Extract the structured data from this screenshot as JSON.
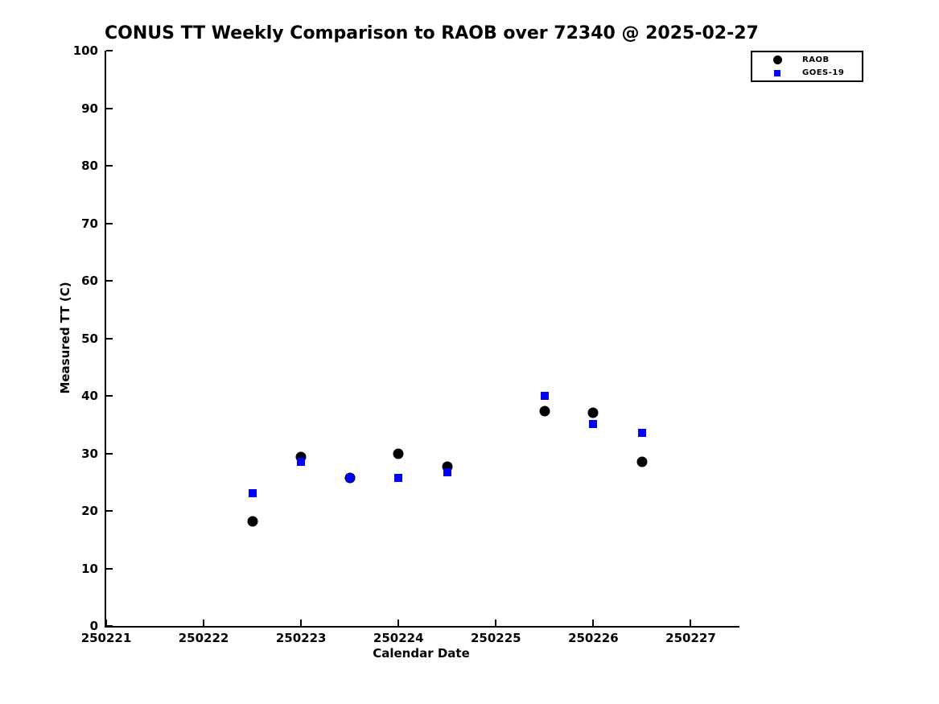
{
  "chart_data": {
    "type": "scatter",
    "title": "CONUS TT Weekly Comparison to RAOB over 72340 @ 2025-02-27",
    "xlabel": "Calendar Date",
    "ylabel": "Measured TT (C)",
    "xlim": [
      250221,
      250227.5
    ],
    "ylim": [
      0,
      100
    ],
    "xticks": [
      250221,
      250222,
      250223,
      250224,
      250225,
      250226,
      250227
    ],
    "yticks": [
      0,
      10,
      20,
      30,
      40,
      50,
      60,
      70,
      80,
      90,
      100
    ],
    "grid": false,
    "legend_position": "top-right-outside",
    "background_color": "#ffffff",
    "series": [
      {
        "name": "RAOB",
        "marker": "circle",
        "color": "#000000",
        "points": [
          {
            "x": 250222.5,
            "y": 18.2
          },
          {
            "x": 250223.0,
            "y": 29.4
          },
          {
            "x": 250223.5,
            "y": 25.7
          },
          {
            "x": 250224.0,
            "y": 29.9
          },
          {
            "x": 250224.5,
            "y": 27.7
          },
          {
            "x": 250225.5,
            "y": 37.4
          },
          {
            "x": 250226.0,
            "y": 37.1
          },
          {
            "x": 250226.5,
            "y": 28.5
          }
        ]
      },
      {
        "name": "GOES-19",
        "marker": "square",
        "color": "#0000ff",
        "points": [
          {
            "x": 250222.5,
            "y": 23.1
          },
          {
            "x": 250223.0,
            "y": 28.5
          },
          {
            "x": 250223.5,
            "y": 25.7
          },
          {
            "x": 250224.0,
            "y": 25.7
          },
          {
            "x": 250224.5,
            "y": 26.7
          },
          {
            "x": 250225.5,
            "y": 40.0
          },
          {
            "x": 250226.0,
            "y": 35.1
          },
          {
            "x": 250226.5,
            "y": 33.6
          }
        ]
      }
    ]
  }
}
